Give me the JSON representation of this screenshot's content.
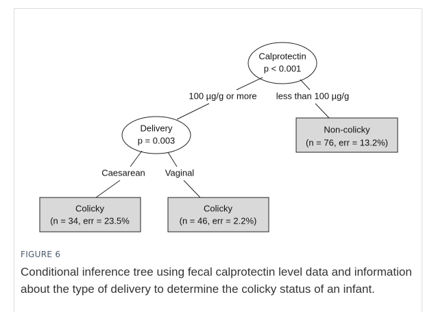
{
  "tree": {
    "nodes": [
      {
        "lines": [
          "Calprotectin",
          "p < 0.001"
        ]
      },
      {
        "lines": [
          "Delivery",
          "p = 0.003"
        ]
      },
      {
        "lines": [
          "Non-colicky",
          "(n = 76, err = 13.2%)"
        ]
      },
      {
        "lines": [
          "Colicky",
          "(n = 34, err = 23.5%"
        ]
      },
      {
        "lines": [
          "Colicky",
          "(n = 46, err = 2.2%)"
        ]
      }
    ],
    "edges": [
      {
        "label": "100 µg/g or more"
      },
      {
        "label": "less than 100 µg/g"
      },
      {
        "label": "Caesarean"
      },
      {
        "label": "Vaginal"
      }
    ]
  },
  "figure": {
    "label": "FIGURE 6",
    "caption": "Conditional inference tree using fecal calprotectin level data and information about the type of delivery to determine the colicky status of an infant."
  }
}
